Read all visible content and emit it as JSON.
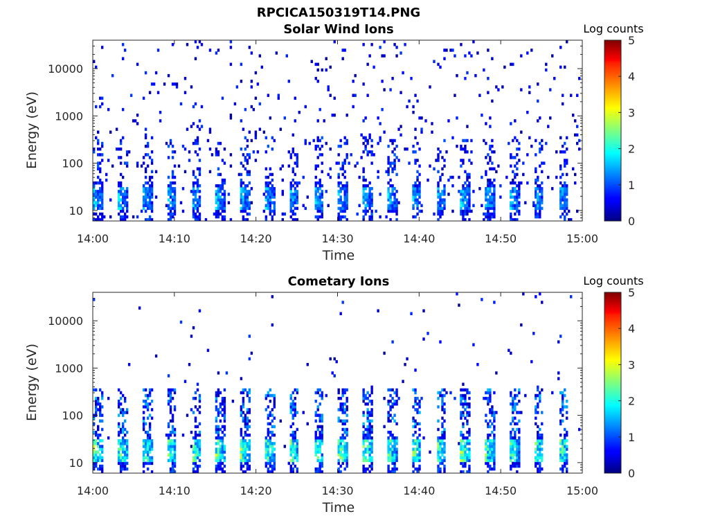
{
  "figure": {
    "title": "RPCICA150319T14.PNG"
  },
  "chart_data": [
    {
      "type": "heatmap",
      "title": "Solar Wind Ions",
      "xlabel": "Time",
      "ylabel": "Energy (eV)",
      "x_range": [
        "14:00",
        "15:00"
      ],
      "x_ticks": [
        "14:00",
        "14:10",
        "14:20",
        "14:30",
        "14:40",
        "14:50",
        "15:00"
      ],
      "y_scale": "log",
      "y_range": [
        6,
        40000
      ],
      "y_ticks": [
        10,
        100,
        1000,
        10000
      ],
      "y_tick_labels": [
        "10",
        "100",
        "1000",
        "10000"
      ],
      "colorbar": {
        "label": "Log counts",
        "range": [
          0,
          5
        ],
        "ticks": [
          "0",
          "1",
          "2",
          "3",
          "4",
          "5"
        ],
        "colormap": "jet"
      },
      "grid": false,
      "description_values": {
        "low_energy_band_eV": [
          10,
          30
        ],
        "low_band_peak_log_counts": 2.0,
        "band_period_minutes": 3,
        "scattered_high_energy_log_counts": 0.3
      }
    },
    {
      "type": "heatmap",
      "title": "Cometary Ions",
      "xlabel": "Time",
      "ylabel": "Energy (eV)",
      "x_range": [
        "14:00",
        "15:00"
      ],
      "x_ticks": [
        "14:00",
        "14:10",
        "14:20",
        "14:30",
        "14:40",
        "14:50",
        "15:00"
      ],
      "y_scale": "log",
      "y_range": [
        6,
        40000
      ],
      "y_ticks": [
        10,
        100,
        1000,
        10000
      ],
      "y_tick_labels": [
        "10",
        "100",
        "1000",
        "10000"
      ],
      "colorbar": {
        "label": "Log counts",
        "range": [
          0,
          5
        ],
        "ticks": [
          "0",
          "1",
          "2",
          "3",
          "4",
          "5"
        ],
        "colormap": "jet"
      },
      "grid": false,
      "description_values": {
        "low_energy_band_eV": [
          10,
          30
        ],
        "low_band_peak_log_counts": 3.0,
        "band_period_minutes": 3,
        "scattered_high_energy_log_counts": 0.3
      }
    }
  ]
}
